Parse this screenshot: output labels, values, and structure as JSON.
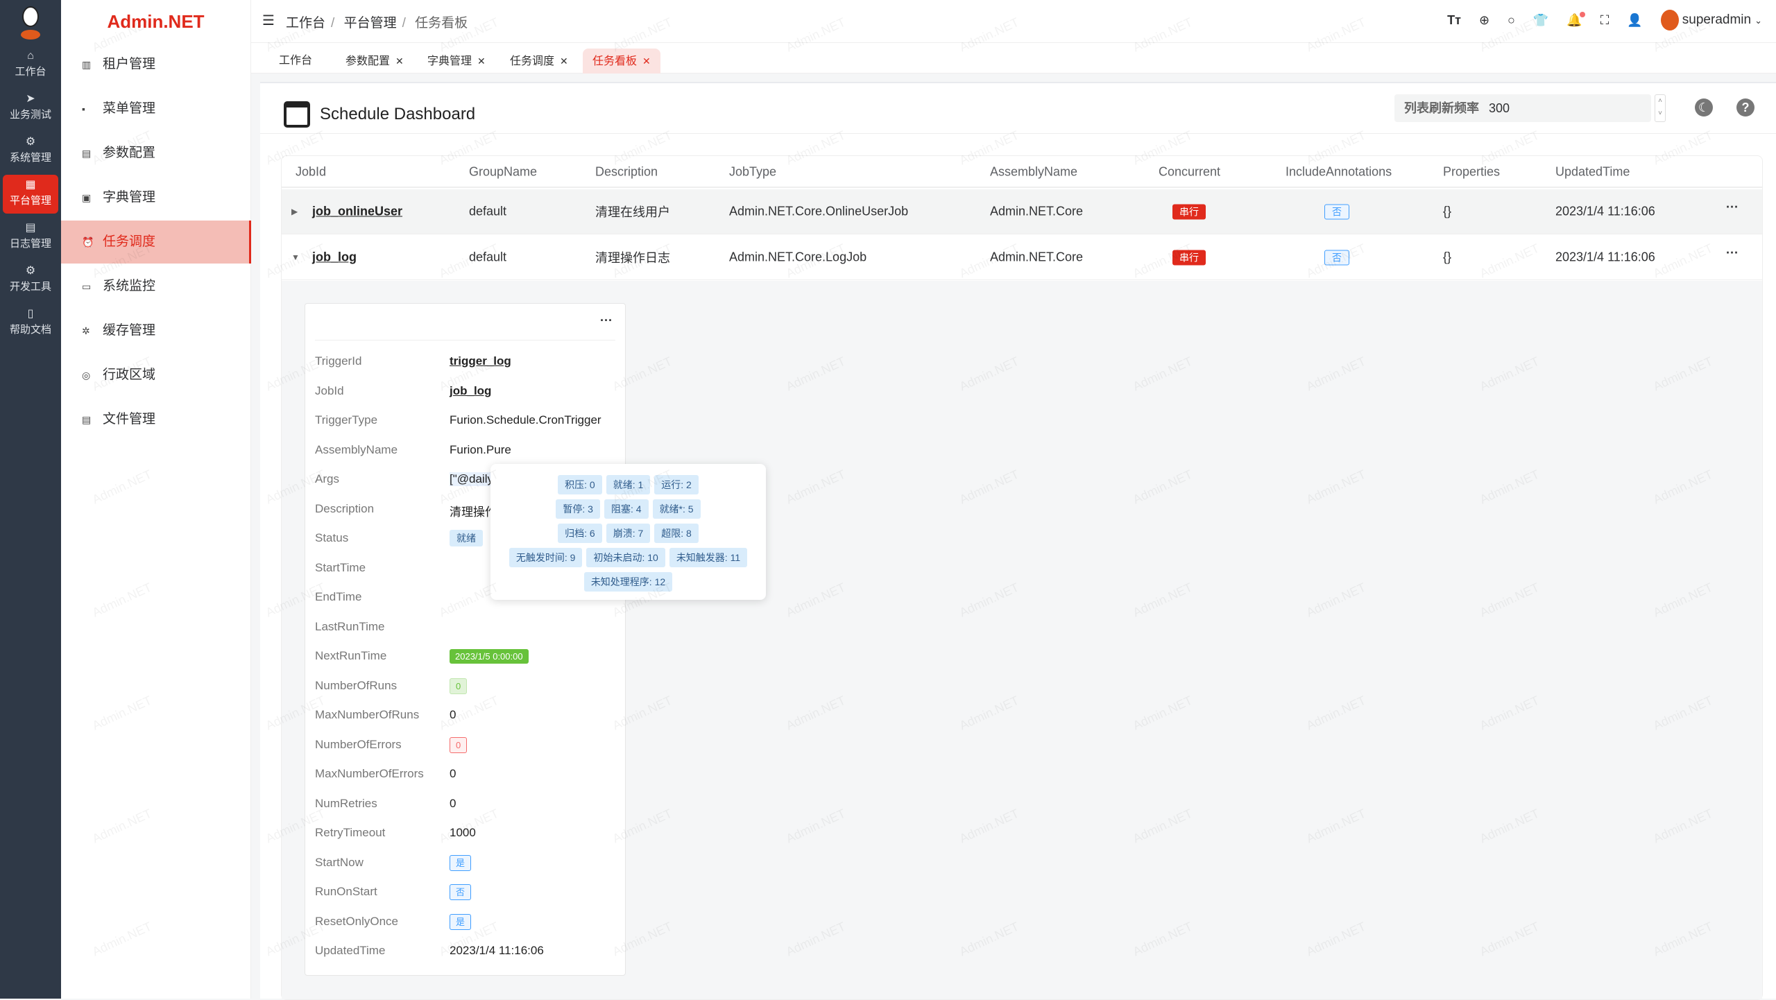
{
  "rail": [
    {
      "label": "工作台",
      "icon": "home-icon",
      "glyph": "⌂"
    },
    {
      "label": "业务测试",
      "icon": "send-icon",
      "glyph": "➤"
    },
    {
      "label": "系统管理",
      "icon": "gear-icon",
      "glyph": "⚙"
    },
    {
      "label": "平台管理",
      "icon": "grid-icon",
      "glyph": "▦",
      "active": true
    },
    {
      "label": "日志管理",
      "icon": "document-icon",
      "glyph": "▤"
    },
    {
      "label": "开发工具",
      "icon": "chip-icon",
      "glyph": "⚙"
    },
    {
      "label": "帮助文档",
      "icon": "book-icon",
      "glyph": "▯"
    }
  ],
  "brand": "Admin.NET",
  "menu": [
    {
      "label": "租户管理",
      "glyph": "▥"
    },
    {
      "label": "菜单管理",
      "glyph": "▪"
    },
    {
      "label": "参数配置",
      "glyph": "▤"
    },
    {
      "label": "字典管理",
      "glyph": "▣"
    },
    {
      "label": "任务调度",
      "glyph": "⏰",
      "active": true
    },
    {
      "label": "系统监控",
      "glyph": "▭"
    },
    {
      "label": "缓存管理",
      "glyph": "✲"
    },
    {
      "label": "行政区域",
      "glyph": "◎"
    },
    {
      "label": "文件管理",
      "glyph": "▤"
    }
  ],
  "breadcrumb": [
    "工作台",
    "平台管理",
    "任务看板"
  ],
  "user": "superadmin",
  "tabs": [
    {
      "label": "工作台",
      "closable": false
    },
    {
      "label": "参数配置",
      "closable": true
    },
    {
      "label": "字典管理",
      "closable": true
    },
    {
      "label": "任务调度",
      "closable": true
    },
    {
      "label": "任务看板",
      "closable": true,
      "active": true
    }
  ],
  "page": {
    "title": "Schedule Dashboard",
    "freq_label": "列表刷新频率",
    "freq_value": "300"
  },
  "columns": [
    "JobId",
    "GroupName",
    "Description",
    "JobType",
    "AssemblyName",
    "Concurrent",
    "IncludeAnnotations",
    "Properties",
    "UpdatedTime"
  ],
  "jobs": [
    {
      "JobId": "job_onlineUser",
      "GroupName": "default",
      "Description": "清理在线用户",
      "JobType": "Admin.NET.Core.OnlineUserJob",
      "AssemblyName": "Admin.NET.Core",
      "Concurrent": "串行",
      "IncludeAnnotations": "否",
      "Properties": "{}",
      "UpdatedTime": "2023/1/4 11:16:06",
      "expanded": false
    },
    {
      "JobId": "job_log",
      "GroupName": "default",
      "Description": "清理操作日志",
      "JobType": "Admin.NET.Core.LogJob",
      "AssemblyName": "Admin.NET.Core",
      "Concurrent": "串行",
      "IncludeAnnotations": "否",
      "Properties": "{}",
      "UpdatedTime": "2023/1/4 11:16:06",
      "expanded": true
    }
  ],
  "trigger": [
    {
      "k": "TriggerId",
      "v": "trigger_log",
      "style": "u"
    },
    {
      "k": "JobId",
      "v": "job_log",
      "style": "u"
    },
    {
      "k": "TriggerType",
      "v": "Furion.Schedule.CronTrigger"
    },
    {
      "k": "AssemblyName",
      "v": "Furion.Pure"
    },
    {
      "k": "Args",
      "v": "[\"@daily"
    },
    {
      "k": "Description",
      "v": "清理操作"
    },
    {
      "k": "Status",
      "v": "就绪",
      "style": "st"
    },
    {
      "k": "StartTime",
      "v": ""
    },
    {
      "k": "EndTime",
      "v": ""
    },
    {
      "k": "LastRunTime",
      "v": ""
    },
    {
      "k": "NextRunTime",
      "v": "2023/1/5 0:00:00",
      "style": "g"
    },
    {
      "k": "NumberOfRuns",
      "v": "0",
      "style": "lg"
    },
    {
      "k": "MaxNumberOfRuns",
      "v": "0"
    },
    {
      "k": "NumberOfErrors",
      "v": "0",
      "style": "r"
    },
    {
      "k": "MaxNumberOfErrors",
      "v": "0"
    },
    {
      "k": "NumRetries",
      "v": "0"
    },
    {
      "k": "RetryTimeout",
      "v": "1000"
    },
    {
      "k": "StartNow",
      "v": "是",
      "style": "b"
    },
    {
      "k": "RunOnStart",
      "v": "否",
      "style": "b"
    },
    {
      "k": "ResetOnlyOnce",
      "v": "是",
      "style": "b"
    },
    {
      "k": "UpdatedTime",
      "v": "2023/1/4 11:16:06"
    }
  ],
  "status_tooltip": [
    [
      "积压: 0",
      "就绪: 1",
      "运行: 2"
    ],
    [
      "暂停: 3",
      "阻塞: 4",
      "就绪*: 5"
    ],
    [
      "归档: 6",
      "崩溃: 7",
      "超限: 8"
    ],
    [
      "无触发时间: 9",
      "初始未启动: 10",
      "未知触发器: 11"
    ],
    [
      "未知处理程序: 12"
    ]
  ],
  "watermark": "Admin.NET",
  "colors": {
    "accent": "#e02a1c",
    "rail": "#2f3947",
    "info": "#409eff"
  }
}
